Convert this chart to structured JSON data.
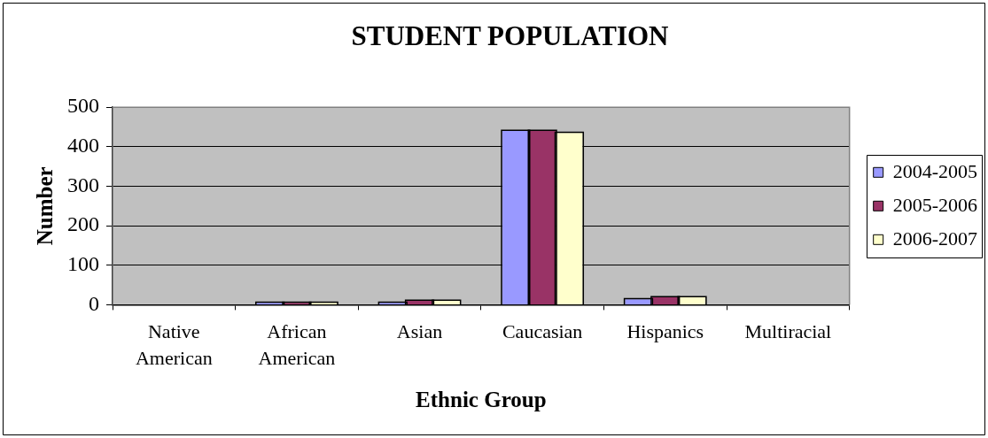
{
  "chart_data": {
    "type": "bar",
    "title": "STUDENT POPULATION",
    "xlabel": "Ethnic Group",
    "ylabel": "Number",
    "categories": [
      "Native American",
      "African American",
      "Asian",
      "Caucasian",
      "Hispanics",
      "Multiracial"
    ],
    "series": [
      {
        "name": "2004-2005",
        "color": "#9999ff",
        "values": [
          0,
          5,
          5,
          440,
          14,
          0
        ]
      },
      {
        "name": "2005-2006",
        "color": "#993366",
        "values": [
          0,
          5,
          10,
          440,
          19,
          0
        ]
      },
      {
        "name": "2006-2007",
        "color": "#ffffcc",
        "values": [
          0,
          5,
          10,
          435,
          19,
          0
        ]
      }
    ],
    "ylim": [
      0,
      500
    ],
    "yticks": [
      0,
      100,
      200,
      300,
      400,
      500
    ],
    "grid": "y",
    "legend": "right"
  }
}
